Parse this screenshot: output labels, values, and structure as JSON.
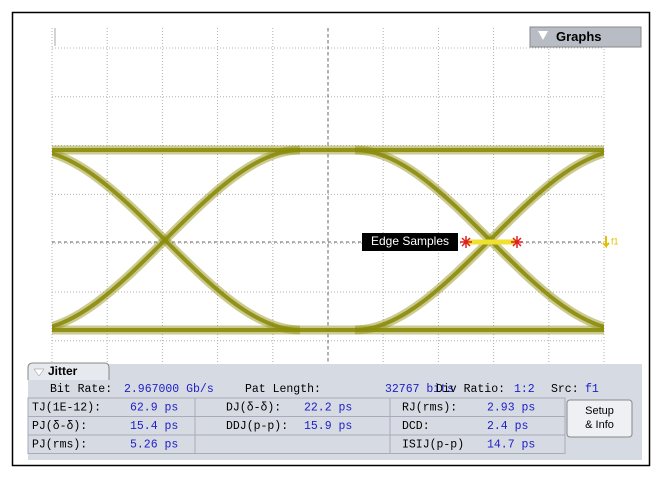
{
  "graphs_button": "Graphs",
  "annotation": "Edge Samples",
  "trace_label": "f1",
  "jitter_tab": "Jitter",
  "summary": [
    {
      "label": "Bit Rate:",
      "value": "2.967000 Gb/s"
    },
    {
      "label": "Pat Length:",
      "value": "32767 bits"
    },
    {
      "label": "Div Ratio:",
      "value": "1:2"
    },
    {
      "label": "Src:",
      "value": "f1"
    }
  ],
  "measurements": [
    [
      {
        "label": "TJ(1E-12):",
        "value": "62.9 ps"
      },
      {
        "label": "PJ(δ-δ):",
        "value": "15.4 ps"
      },
      {
        "label": "PJ(rms):",
        "value": "5.26 ps"
      }
    ],
    [
      {
        "label": "DJ(δ-δ):",
        "value": "22.2 ps"
      },
      {
        "label": "DDJ(p-p):",
        "value": "15.9 ps"
      }
    ],
    [
      {
        "label": "RJ(rms):",
        "value": "2.93 ps"
      },
      {
        "label": "DCD:",
        "value": "2.4 ps"
      },
      {
        "label": "ISIJ(p-p)",
        "value": "14.7 ps"
      }
    ]
  ],
  "setup_button": [
    "Setup",
    "& Info"
  ]
}
